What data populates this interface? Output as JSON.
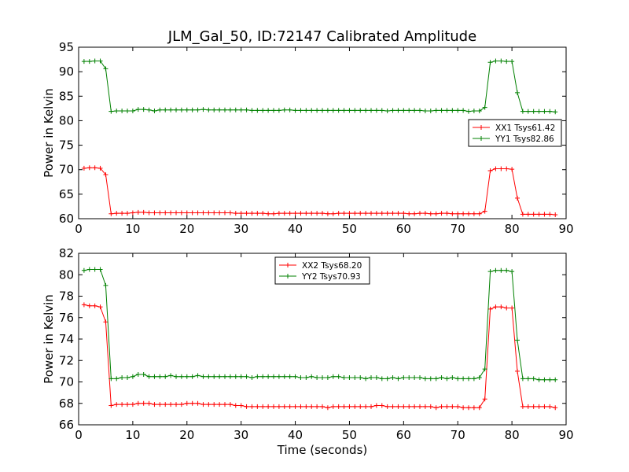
{
  "colors": {
    "xx": "#ff0000",
    "yy": "#008000"
  },
  "chart_data": [
    {
      "type": "line",
      "title": "JLM_Gal_50, ID:72147 Calibrated Amplitude",
      "xlabel": "",
      "ylabel": "Power in Kelvin",
      "xlim": [
        0,
        90
      ],
      "ylim": [
        60,
        95
      ],
      "xticks": [
        0,
        10,
        20,
        30,
        40,
        50,
        60,
        70,
        80,
        90
      ],
      "yticks": [
        60,
        65,
        70,
        75,
        80,
        85,
        90,
        95
      ],
      "legend_position": "center-right",
      "x": [
        1,
        2,
        3,
        4,
        5,
        6,
        7,
        8,
        9,
        10,
        11,
        12,
        13,
        14,
        15,
        16,
        17,
        18,
        19,
        20,
        21,
        22,
        23,
        24,
        25,
        26,
        27,
        28,
        29,
        30,
        31,
        32,
        33,
        34,
        35,
        36,
        37,
        38,
        39,
        40,
        41,
        42,
        43,
        44,
        45,
        46,
        47,
        48,
        49,
        50,
        51,
        52,
        53,
        54,
        55,
        56,
        57,
        58,
        59,
        60,
        61,
        62,
        63,
        64,
        65,
        66,
        67,
        68,
        69,
        70,
        71,
        72,
        73,
        74,
        75,
        76,
        77,
        78,
        79,
        80,
        81,
        82,
        83,
        84,
        85,
        86,
        87,
        88
      ],
      "series": [
        {
          "name": "XX1 Tsys61.42",
          "color": "#ff0000",
          "values": [
            70.3,
            70.4,
            70.4,
            70.3,
            69.0,
            61.0,
            61.1,
            61.1,
            61.1,
            61.2,
            61.3,
            61.3,
            61.2,
            61.2,
            61.2,
            61.2,
            61.2,
            61.2,
            61.2,
            61.2,
            61.2,
            61.2,
            61.2,
            61.2,
            61.2,
            61.2,
            61.2,
            61.2,
            61.1,
            61.1,
            61.1,
            61.1,
            61.1,
            61.1,
            61.0,
            61.0,
            61.1,
            61.1,
            61.1,
            61.1,
            61.1,
            61.1,
            61.1,
            61.1,
            61.1,
            61.0,
            61.0,
            61.1,
            61.1,
            61.1,
            61.1,
            61.1,
            61.1,
            61.1,
            61.1,
            61.1,
            61.1,
            61.1,
            61.1,
            61.1,
            61.0,
            61.0,
            61.1,
            61.1,
            61.0,
            61.0,
            61.1,
            61.1,
            61.0,
            61.0,
            61.0,
            61.0,
            61.0,
            61.0,
            61.5,
            69.8,
            70.2,
            70.2,
            70.2,
            70.1,
            64.2,
            60.9,
            60.9,
            60.9,
            60.9,
            60.9,
            60.9,
            60.8
          ]
        },
        {
          "name": "YY1 Tsys82.86",
          "color": "#008000",
          "values": [
            92.1,
            92.1,
            92.2,
            92.2,
            90.6,
            81.9,
            82.0,
            82.0,
            82.0,
            82.0,
            82.3,
            82.3,
            82.2,
            82.0,
            82.2,
            82.2,
            82.2,
            82.2,
            82.2,
            82.2,
            82.2,
            82.2,
            82.3,
            82.2,
            82.2,
            82.2,
            82.2,
            82.2,
            82.2,
            82.2,
            82.2,
            82.1,
            82.1,
            82.1,
            82.1,
            82.1,
            82.1,
            82.2,
            82.2,
            82.1,
            82.1,
            82.1,
            82.1,
            82.1,
            82.1,
            82.1,
            82.1,
            82.1,
            82.1,
            82.1,
            82.1,
            82.1,
            82.1,
            82.1,
            82.1,
            82.1,
            82.0,
            82.1,
            82.1,
            82.1,
            82.1,
            82.1,
            82.1,
            82.0,
            82.0,
            82.1,
            82.1,
            82.1,
            82.1,
            82.1,
            82.1,
            81.9,
            82.0,
            82.0,
            82.7,
            91.9,
            92.2,
            92.2,
            92.1,
            92.1,
            85.7,
            81.9,
            81.9,
            81.9,
            81.9,
            81.9,
            81.9,
            81.8
          ]
        }
      ]
    },
    {
      "type": "line",
      "title": "",
      "xlabel": "Time (seconds)",
      "ylabel": "Power in Kelvin",
      "xlim": [
        0,
        90
      ],
      "ylim": [
        66,
        82
      ],
      "xticks": [
        0,
        10,
        20,
        30,
        40,
        50,
        60,
        70,
        80,
        90
      ],
      "yticks": [
        66,
        68,
        70,
        72,
        74,
        76,
        78,
        80,
        82
      ],
      "legend_position": "upper-center",
      "x": [
        1,
        2,
        3,
        4,
        5,
        6,
        7,
        8,
        9,
        10,
        11,
        12,
        13,
        14,
        15,
        16,
        17,
        18,
        19,
        20,
        21,
        22,
        23,
        24,
        25,
        26,
        27,
        28,
        29,
        30,
        31,
        32,
        33,
        34,
        35,
        36,
        37,
        38,
        39,
        40,
        41,
        42,
        43,
        44,
        45,
        46,
        47,
        48,
        49,
        50,
        51,
        52,
        53,
        54,
        55,
        56,
        57,
        58,
        59,
        60,
        61,
        62,
        63,
        64,
        65,
        66,
        67,
        68,
        69,
        70,
        71,
        72,
        73,
        74,
        75,
        76,
        77,
        78,
        79,
        80,
        81,
        82,
        83,
        84,
        85,
        86,
        87,
        88
      ],
      "series": [
        {
          "name": "XX2 Tsys68.20",
          "color": "#ff0000",
          "values": [
            77.2,
            77.1,
            77.1,
            77.0,
            75.6,
            67.8,
            67.9,
            67.9,
            67.9,
            67.9,
            68.0,
            68.0,
            68.0,
            67.9,
            67.9,
            67.9,
            67.9,
            67.9,
            67.9,
            68.0,
            68.0,
            68.0,
            67.9,
            67.9,
            67.9,
            67.9,
            67.9,
            67.9,
            67.8,
            67.8,
            67.7,
            67.7,
            67.7,
            67.7,
            67.7,
            67.7,
            67.7,
            67.7,
            67.7,
            67.7,
            67.7,
            67.7,
            67.7,
            67.7,
            67.7,
            67.6,
            67.7,
            67.7,
            67.7,
            67.7,
            67.7,
            67.7,
            67.7,
            67.7,
            67.8,
            67.8,
            67.7,
            67.7,
            67.7,
            67.7,
            67.7,
            67.7,
            67.7,
            67.7,
            67.7,
            67.6,
            67.7,
            67.7,
            67.7,
            67.7,
            67.6,
            67.6,
            67.6,
            67.6,
            68.4,
            76.8,
            77.0,
            77.0,
            76.9,
            76.9,
            71.0,
            67.7,
            67.7,
            67.7,
            67.7,
            67.7,
            67.7,
            67.6
          ]
        },
        {
          "name": "YY2 Tsys70.93",
          "color": "#008000",
          "values": [
            80.4,
            80.5,
            80.5,
            80.5,
            79.0,
            70.3,
            70.3,
            70.4,
            70.4,
            70.5,
            70.7,
            70.7,
            70.5,
            70.5,
            70.5,
            70.5,
            70.6,
            70.5,
            70.5,
            70.5,
            70.5,
            70.6,
            70.5,
            70.5,
            70.5,
            70.5,
            70.5,
            70.5,
            70.5,
            70.5,
            70.5,
            70.4,
            70.5,
            70.5,
            70.5,
            70.5,
            70.5,
            70.5,
            70.5,
            70.5,
            70.4,
            70.4,
            70.5,
            70.4,
            70.4,
            70.4,
            70.5,
            70.5,
            70.4,
            70.4,
            70.4,
            70.4,
            70.3,
            70.4,
            70.4,
            70.3,
            70.3,
            70.4,
            70.3,
            70.4,
            70.4,
            70.4,
            70.4,
            70.3,
            70.3,
            70.3,
            70.4,
            70.3,
            70.4,
            70.3,
            70.3,
            70.3,
            70.3,
            70.4,
            71.2,
            80.3,
            80.4,
            80.4,
            80.4,
            80.3,
            73.9,
            70.3,
            70.3,
            70.3,
            70.2,
            70.2,
            70.2,
            70.2
          ]
        }
      ]
    }
  ]
}
